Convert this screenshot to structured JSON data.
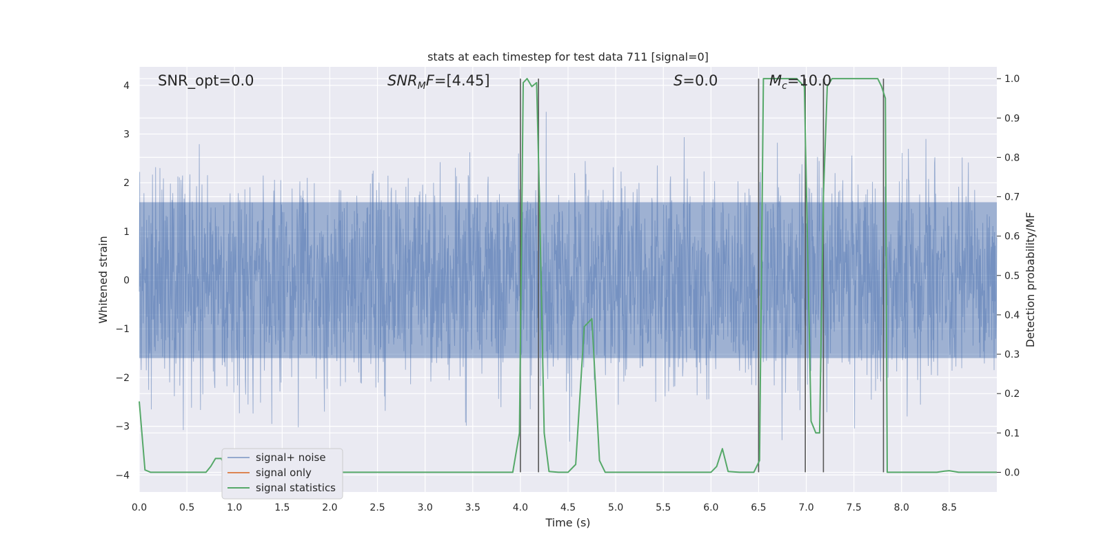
{
  "chart_data": {
    "type": "line",
    "title": "stats at each timestep for test data 711 [signal=0]",
    "xlabel": "Time (s)",
    "ylabel_left": "Whitened strain",
    "ylabel_right": "Detection probability/MF",
    "xlim": [
      0.0,
      9.0
    ],
    "ylim_left": [
      -4.35,
      4.38
    ],
    "ylim_right": [
      -0.05,
      1.03
    ],
    "x_ticks": [
      "0.0",
      "0.5",
      "1.0",
      "1.5",
      "2.0",
      "2.5",
      "3.0",
      "3.5",
      "4.0",
      "4.5",
      "5.0",
      "5.5",
      "6.0",
      "6.5",
      "7.0",
      "7.5",
      "8.0",
      "8.5"
    ],
    "y_ticks_left": [
      "4",
      "3",
      "2",
      "1",
      "0",
      "−1",
      "−2",
      "−3",
      "−4"
    ],
    "y_ticks_right": [
      "1.0",
      "0.9",
      "0.8",
      "0.7",
      "0.6",
      "0.5",
      "0.4",
      "0.3",
      "0.2",
      "0.1",
      "0.0"
    ],
    "grid": true,
    "legend_position": "lower-left",
    "annotations": {
      "snr_opt": "SNR_opt=0.0",
      "snr_mf": "[4.45]",
      "s_val": "=0.0",
      "mc_val": "=10.0"
    },
    "colors": {
      "background": "#eaeaf2",
      "grid": "#ffffff",
      "signal_noise": "#4c72b0",
      "signal_only": "#dd8452",
      "signal_statistics": "#55a868",
      "vertical_markers": "#555555"
    },
    "series": [
      {
        "name": "signal+ noise",
        "axis": "left",
        "description_values": "whitened strain noise, amplitude envelope roughly ±1.6 with peaks to about ±3.5"
      },
      {
        "name": "signal only",
        "axis": "left",
        "values": []
      },
      {
        "name": "signal statistics",
        "axis": "right",
        "x": [
          0.0,
          0.06,
          0.12,
          0.7,
          0.75,
          0.8,
          0.86,
          0.92,
          0.97,
          1.0,
          3.92,
          3.99,
          4.03,
          4.07,
          4.12,
          4.17,
          4.2,
          4.25,
          4.3,
          4.4,
          4.5,
          4.58,
          4.67,
          4.75,
          4.83,
          4.89,
          5.0,
          6.0,
          6.06,
          6.12,
          6.18,
          6.3,
          6.45,
          6.51,
          6.55,
          6.6,
          6.9,
          6.98,
          7.02,
          7.05,
          7.1,
          7.14,
          7.18,
          7.22,
          7.27,
          7.75,
          7.79,
          7.83,
          7.85,
          8.0,
          8.37,
          8.45,
          8.5,
          8.6,
          9.0
        ],
        "y": [
          0.18,
          0.006,
          0.0,
          0.0,
          0.015,
          0.035,
          0.035,
          0.005,
          0.0,
          0.0,
          0.0,
          0.1,
          0.99,
          1.0,
          0.98,
          0.99,
          0.7,
          0.1,
          0.002,
          0.0,
          0.0,
          0.02,
          0.37,
          0.39,
          0.03,
          0.0,
          0.0,
          0.0,
          0.015,
          0.06,
          0.002,
          0.0,
          0.0,
          0.03,
          1.0,
          1.0,
          1.0,
          0.98,
          0.5,
          0.13,
          0.1,
          0.1,
          0.7,
          0.98,
          1.0,
          1.0,
          0.98,
          0.95,
          0.0,
          0.0,
          0.0,
          0.003,
          0.004,
          0.0,
          0.0
        ]
      }
    ],
    "vertical_markers_x": [
      4.0,
      4.19,
      6.5,
      6.99,
      7.18,
      7.81
    ]
  },
  "legend": {
    "items": [
      {
        "label": "signal+ noise",
        "color": "#4c72b0"
      },
      {
        "label": "signal only",
        "color": "#dd8452"
      },
      {
        "label": "signal statistics",
        "color": "#55a868"
      }
    ]
  }
}
